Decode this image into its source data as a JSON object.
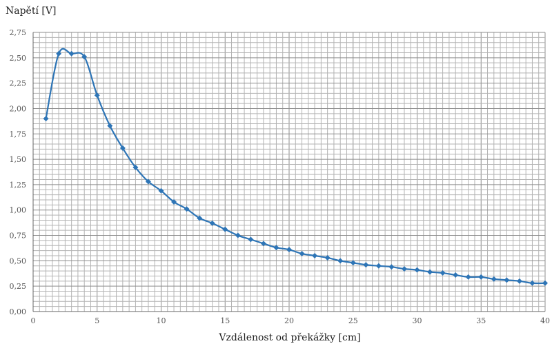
{
  "chart_data": {
    "type": "line",
    "title": "",
    "ylabel": "Napětí [V]",
    "xlabel": "Vzdálenost od překážky [cm]",
    "xlim": [
      0,
      40
    ],
    "ylim": [
      0,
      2.75
    ],
    "xticks": [
      0,
      5,
      10,
      15,
      20,
      25,
      30,
      35,
      40
    ],
    "yticks": [
      "0,00",
      "0,25",
      "0,50",
      "0,75",
      "1,00",
      "1,25",
      "1,50",
      "1,75",
      "2,00",
      "2,25",
      "2,50",
      "2,75"
    ],
    "grid": true,
    "series_color": "#2e75b6",
    "series": [
      {
        "x": [
          1,
          2,
          3,
          4,
          5,
          6,
          7,
          8,
          9,
          10,
          11,
          12,
          13,
          14,
          15,
          16,
          17,
          18,
          19,
          20,
          21,
          22,
          23,
          24,
          25,
          26,
          27,
          28,
          29,
          30,
          31,
          32,
          33,
          34,
          35,
          36,
          37,
          38,
          39,
          40
        ],
        "values": [
          1.9,
          2.54,
          2.54,
          2.51,
          2.13,
          1.83,
          1.61,
          1.42,
          1.28,
          1.19,
          1.08,
          1.01,
          0.92,
          0.87,
          0.81,
          0.75,
          0.71,
          0.67,
          0.63,
          0.61,
          0.57,
          0.55,
          0.53,
          0.5,
          0.48,
          0.46,
          0.45,
          0.44,
          0.42,
          0.41,
          0.39,
          0.38,
          0.36,
          0.34,
          0.34,
          0.32,
          0.31,
          0.3,
          0.28,
          0.28
        ]
      }
    ]
  }
}
